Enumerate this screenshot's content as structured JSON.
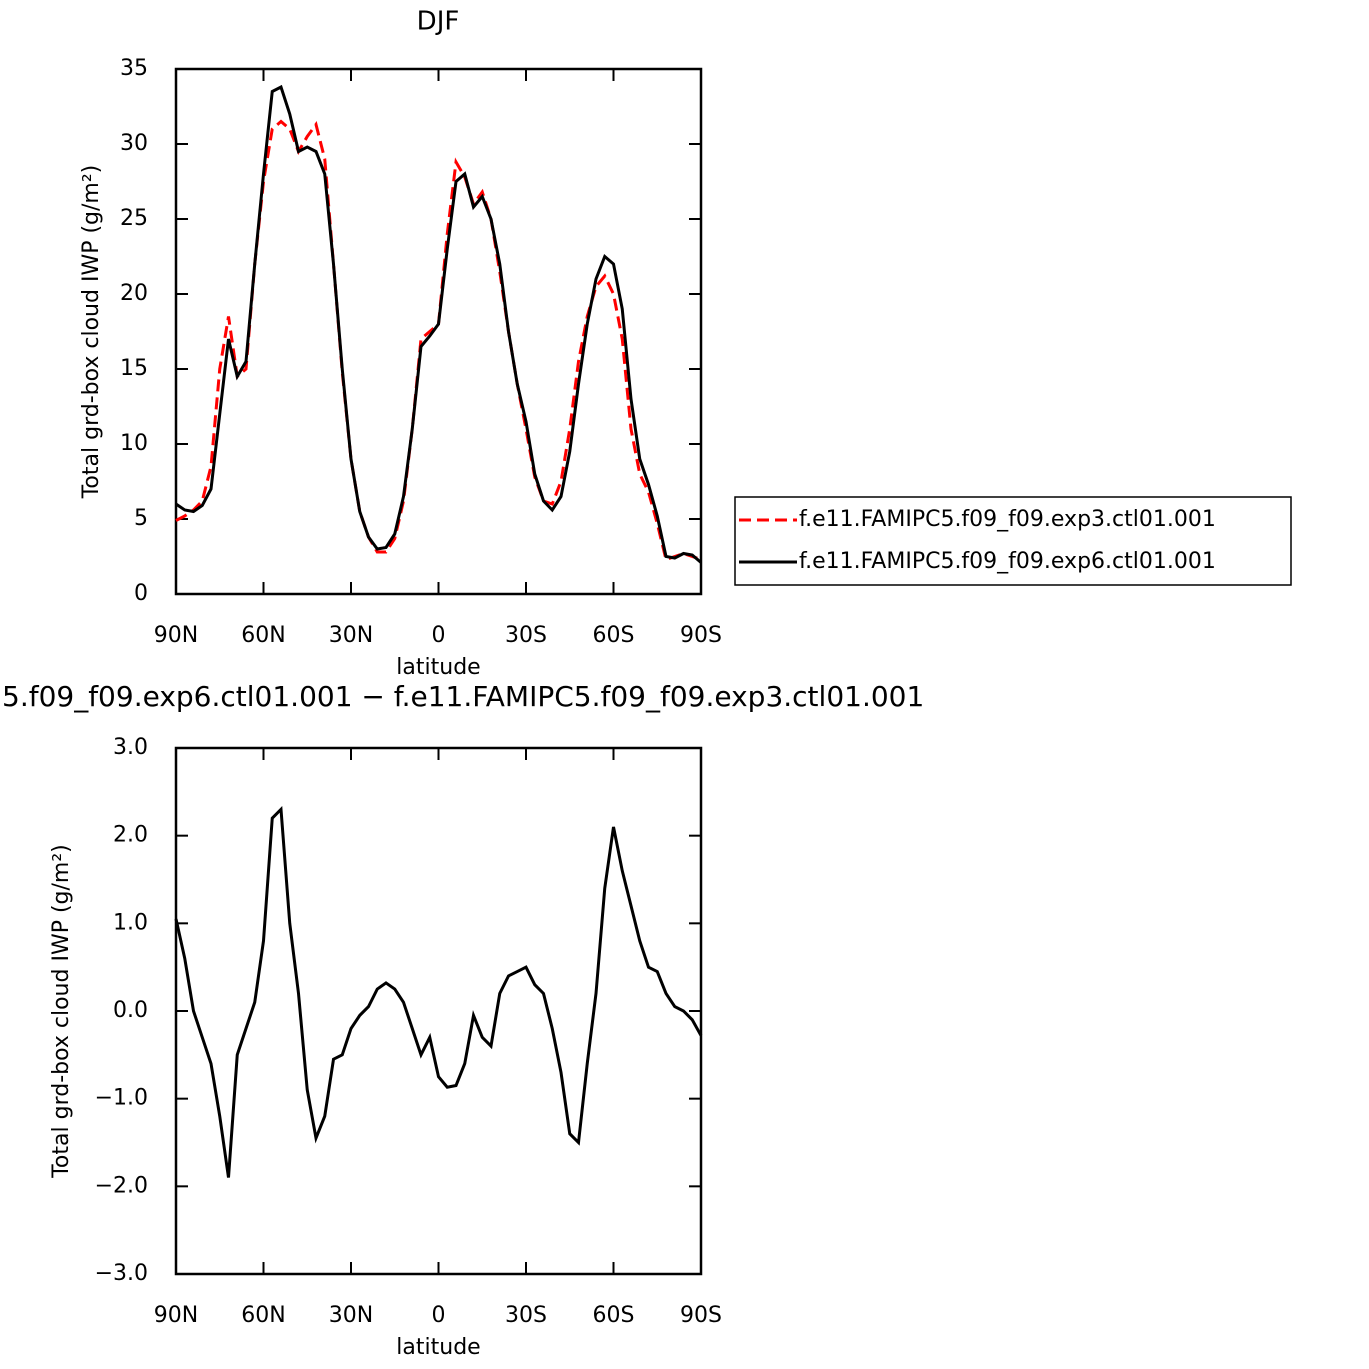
{
  "chart_data": [
    {
      "type": "line",
      "title": "DJF",
      "x_label": "latitude",
      "y_label": "Total grd-box cloud IWP (g/m²)",
      "x": [
        90,
        87,
        84,
        81,
        78,
        75,
        72,
        69,
        66,
        63,
        60,
        57,
        54,
        51,
        48,
        45,
        42,
        39,
        36,
        33,
        30,
        27,
        24,
        21,
        18,
        15,
        12,
        9,
        6,
        3,
        0,
        -3,
        -6,
        -9,
        -12,
        -15,
        -18,
        -21,
        -24,
        -27,
        -30,
        -33,
        -36,
        -39,
        -42,
        -45,
        -48,
        -51,
        -54,
        -57,
        -60,
        -63,
        -66,
        -69,
        -72,
        -75,
        -78,
        -81,
        -84,
        -87,
        -90
      ],
      "series": [
        {
          "name": "f.e11.FAMIPC5.f09_f09.exp3.ctl01.001",
          "color": "#ff0000",
          "linestyle": "dashed",
          "values": [
            4.9,
            5.2,
            5.6,
            6.2,
            8.5,
            15,
            18.5,
            14.5,
            15,
            22,
            27.5,
            31,
            31.5,
            31,
            29.5,
            30.5,
            31.3,
            29,
            22,
            14.8,
            9,
            5.5,
            3.8,
            2.8,
            2.8,
            3.7,
            6.2,
            11,
            17,
            17.5,
            18,
            24,
            28.8,
            27.8,
            26,
            26.8,
            25,
            21.5,
            17.5,
            14,
            11,
            7.8,
            6.2,
            6,
            7.5,
            11,
            15.5,
            18.5,
            20.5,
            21.2,
            20,
            17,
            11,
            8,
            6.8,
            4.7,
            2.3,
            2.5,
            2.7,
            2.5,
            2.3
          ]
        },
        {
          "name": "f.e11.FAMIPC5.f09_f09.exp6.ctl01.001",
          "color": "#000000",
          "linestyle": "solid",
          "values": [
            6.0,
            5.6,
            5.5,
            5.9,
            7,
            12,
            17,
            14.5,
            15.5,
            22,
            28,
            33.5,
            33.8,
            32,
            29.5,
            29.8,
            29.5,
            28,
            22,
            15,
            9,
            5.5,
            3.8,
            3.0,
            3.1,
            4,
            6.5,
            11,
            16.5,
            17.2,
            18,
            23,
            27.5,
            28,
            25.8,
            26.5,
            25,
            22,
            17.5,
            14,
            11.5,
            8,
            6.2,
            5.6,
            6.5,
            9.5,
            14,
            18,
            21,
            22.5,
            22,
            19,
            13,
            9,
            7.3,
            5.2,
            2.5,
            2.4,
            2.7,
            2.6,
            2.1
          ]
        }
      ],
      "xlim": [
        90,
        -90
      ],
      "xticks": [
        {
          "value": 90,
          "label": "90N"
        },
        {
          "value": 60,
          "label": "60N"
        },
        {
          "value": 30,
          "label": "30N"
        },
        0,
        {
          "value": -30,
          "label": "30S"
        },
        {
          "value": -60,
          "label": "60S"
        },
        {
          "value": -90,
          "label": "90S"
        }
      ],
      "ylim": [
        0,
        35
      ],
      "yticks": [
        0,
        5,
        10,
        15,
        20,
        25,
        30,
        35
      ],
      "legend": "right"
    },
    {
      "type": "line",
      "title": "5.f09_f09.exp6.ctl01.001 − f.e11.FAMIPC5.f09_f09.exp3.ctl01.001",
      "x_label": "latitude",
      "y_label": "Total grd-box cloud IWP (g/m²)",
      "x": [
        90,
        87,
        84,
        81,
        78,
        75,
        72,
        69,
        66,
        63,
        60,
        57,
        54,
        51,
        48,
        45,
        42,
        39,
        36,
        33,
        30,
        27,
        24,
        21,
        18,
        15,
        12,
        9,
        6,
        3,
        0,
        -3,
        -6,
        -9,
        -12,
        -15,
        -18,
        -21,
        -24,
        -27,
        -30,
        -33,
        -36,
        -39,
        -42,
        -45,
        -48,
        -51,
        -54,
        -57,
        -60,
        -63,
        -66,
        -69,
        -72,
        -75,
        -78,
        -81,
        -84,
        -87,
        -90
      ],
      "values": [
        1.05,
        0.6,
        0.0,
        -0.3,
        -0.6,
        -1.2,
        -1.9,
        -0.5,
        -0.2,
        0.1,
        0.8,
        2.2,
        2.3,
        1.0,
        0.2,
        -0.9,
        -1.45,
        -1.2,
        -0.55,
        -0.5,
        -0.2,
        -0.05,
        0.05,
        0.25,
        0.32,
        0.25,
        0.1,
        -0.2,
        -0.5,
        -0.3,
        -0.75,
        -0.87,
        -0.85,
        -0.6,
        -0.05,
        -0.3,
        -0.4,
        0.2,
        0.4,
        0.45,
        0.5,
        0.3,
        0.2,
        -0.2,
        -0.7,
        -1.4,
        -1.5,
        -0.6,
        0.2,
        1.4,
        2.1,
        1.6,
        1.2,
        0.8,
        0.5,
        0.45,
        0.2,
        0.05,
        0.0,
        -0.1,
        -0.28
      ],
      "color": "#000000",
      "xlim": [
        90,
        -90
      ],
      "xticks": [
        {
          "value": 90,
          "label": "90N"
        },
        {
          "value": 60,
          "label": "60N"
        },
        {
          "value": 30,
          "label": "30N"
        },
        0,
        {
          "value": -30,
          "label": "30S"
        },
        {
          "value": -60,
          "label": "60S"
        },
        {
          "value": -90,
          "label": "90S"
        }
      ],
      "ylim": [
        -3,
        3
      ],
      "yticks": [
        {
          "value": -3,
          "label": "−3.0"
        },
        {
          "value": -2,
          "label": "−2.0"
        },
        {
          "value": -1,
          "label": "−1.0"
        },
        {
          "value": 0,
          "label": "0.0"
        },
        {
          "value": 1,
          "label": "1.0"
        },
        {
          "value": 2,
          "label": "2.0"
        },
        {
          "value": 3,
          "label": "3.0"
        }
      ]
    }
  ]
}
